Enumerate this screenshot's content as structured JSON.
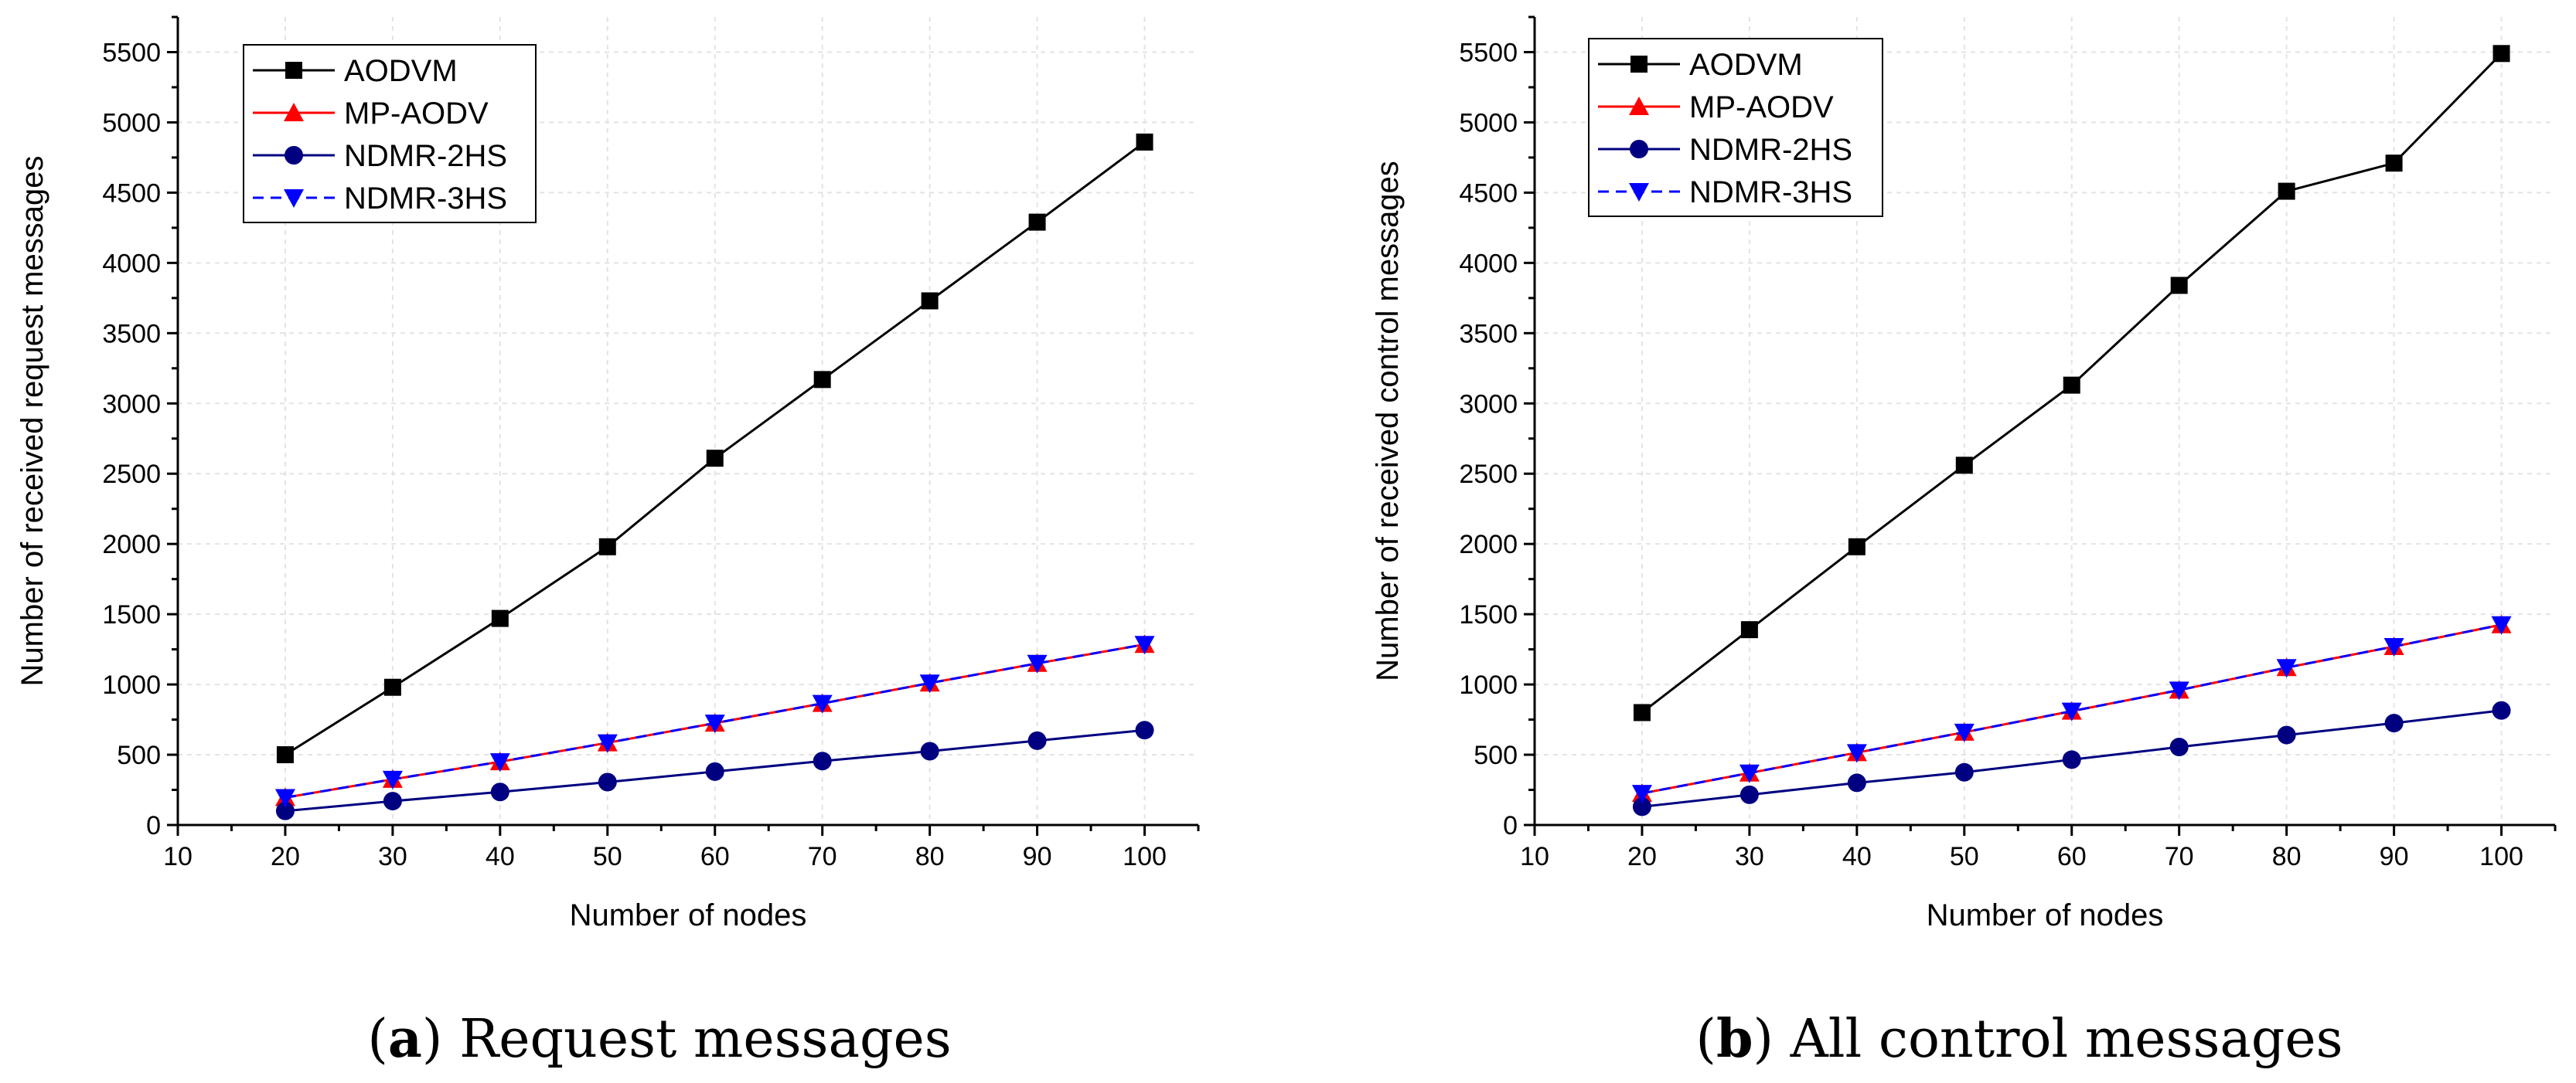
{
  "figure": {
    "panels": [
      {
        "caption_letter": "a",
        "caption_text": "Request messages"
      },
      {
        "caption_letter": "b",
        "caption_text": "All control messages"
      }
    ]
  },
  "chart_data": [
    {
      "type": "line",
      "panel": "a",
      "title": "",
      "xlabel": "Number of nodes",
      "ylabel": "Number of received request messages",
      "xlim": [
        10,
        105
      ],
      "ylim": [
        0,
        5750
      ],
      "xticks": [
        10,
        20,
        30,
        40,
        50,
        60,
        70,
        80,
        90,
        100
      ],
      "yticks": [
        0,
        500,
        1000,
        1500,
        2000,
        2500,
        3000,
        3500,
        4000,
        4500,
        5000,
        5500
      ],
      "grid": true,
      "legend_position": "top-left",
      "x": [
        20,
        30,
        40,
        50,
        60,
        70,
        80,
        90,
        100
      ],
      "series": [
        {
          "name": "AODVM",
          "color": "#000000",
          "marker": "square",
          "dash": "solid",
          "values": [
            500,
            980,
            1470,
            1980,
            2610,
            3170,
            3730,
            4290,
            4860
          ]
        },
        {
          "name": "MP-AODV",
          "color": "#ff0000",
          "marker": "triangle-up",
          "dash": "solid",
          "values": [
            195,
            325,
            450,
            585,
            725,
            865,
            1010,
            1150,
            1285
          ]
        },
        {
          "name": "NDMR-2HS",
          "color": "#000080",
          "marker": "circle",
          "dash": "solid",
          "values": [
            100,
            170,
            235,
            305,
            380,
            455,
            525,
            600,
            675
          ]
        },
        {
          "name": "NDMR-3HS",
          "color": "#0000ff",
          "marker": "triangle-down",
          "dash": "dashed",
          "values": [
            195,
            325,
            450,
            585,
            725,
            865,
            1010,
            1150,
            1285
          ]
        }
      ]
    },
    {
      "type": "line",
      "panel": "b",
      "title": "",
      "xlabel": "Number of nodes",
      "ylabel": "Number of received control messages",
      "xlim": [
        10,
        105
      ],
      "ylim": [
        0,
        5750
      ],
      "xticks": [
        10,
        20,
        30,
        40,
        50,
        60,
        70,
        80,
        90,
        100
      ],
      "yticks": [
        0,
        500,
        1000,
        1500,
        2000,
        2500,
        3000,
        3500,
        4000,
        4500,
        5000,
        5500
      ],
      "grid": true,
      "legend_position": "top-left",
      "x": [
        20,
        30,
        40,
        50,
        60,
        70,
        80,
        90,
        100
      ],
      "series": [
        {
          "name": "AODVM",
          "color": "#000000",
          "marker": "square",
          "dash": "solid",
          "values": [
            800,
            1390,
            1980,
            2560,
            3130,
            3840,
            4510,
            4710,
            5490
          ]
        },
        {
          "name": "MP-AODV",
          "color": "#ff0000",
          "marker": "triangle-up",
          "dash": "solid",
          "values": [
            225,
            370,
            515,
            660,
            810,
            960,
            1120,
            1270,
            1425
          ]
        },
        {
          "name": "NDMR-2HS",
          "color": "#000080",
          "marker": "circle",
          "dash": "solid",
          "values": [
            130,
            215,
            300,
            375,
            465,
            555,
            640,
            725,
            815
          ]
        },
        {
          "name": "NDMR-3HS",
          "color": "#0000ff",
          "marker": "triangle-down",
          "dash": "dashed",
          "values": [
            225,
            370,
            515,
            660,
            810,
            960,
            1120,
            1270,
            1425
          ]
        }
      ]
    }
  ]
}
